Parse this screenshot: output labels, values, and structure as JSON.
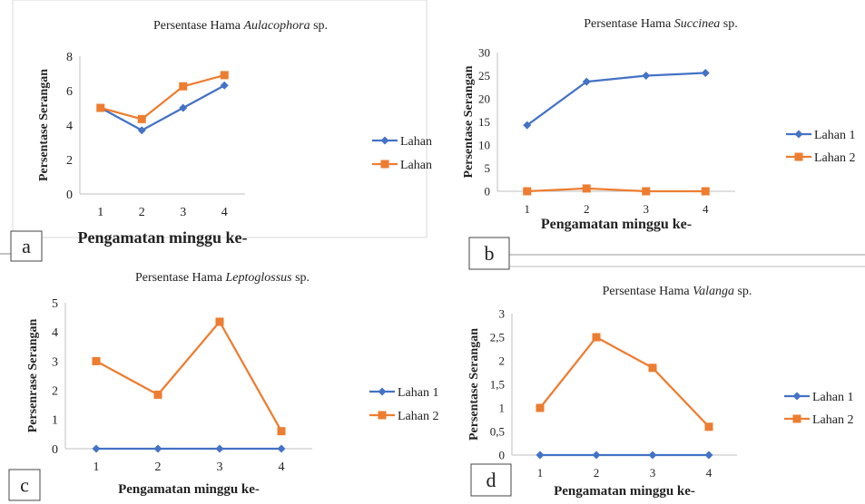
{
  "colors": {
    "series1": "#4472C4",
    "series2": "#ED7D31",
    "axis": "#BFBFBF",
    "text": "#222222"
  },
  "chart_data": [
    {
      "panel_label": "a",
      "type": "line",
      "title_prefix": "Persentase Hama ",
      "title_italic": "Aulacophora",
      "title_suffix": " sp.",
      "xlabel": "Pengamatan minggu ke-",
      "ylabel": "Persentase Serangan",
      "categories": [
        "1",
        "2",
        "3",
        "4"
      ],
      "ylim": [
        0,
        8
      ],
      "yticks": [
        "0",
        "2",
        "4",
        "6",
        "8"
      ],
      "grid": false,
      "legend_position": "right",
      "series": [
        {
          "name": "Lahan",
          "marker": "diamond",
          "values": [
            5.0,
            3.7,
            5.0,
            6.3
          ]
        },
        {
          "name": "Lahan",
          "marker": "square",
          "values": [
            5.0,
            4.35,
            6.25,
            6.9
          ]
        }
      ]
    },
    {
      "panel_label": "b",
      "type": "line",
      "title_prefix": "Persentase Hama ",
      "title_italic": "Succinea",
      "title_suffix": " sp.",
      "xlabel": "Pengamatan minggu ke-",
      "ylabel": "Persentase Serangan",
      "categories": [
        "1",
        "2",
        "3",
        "4"
      ],
      "ylim": [
        0,
        30
      ],
      "yticks": [
        "0",
        "5",
        "10",
        "15",
        "20",
        "25",
        "30"
      ],
      "grid": false,
      "legend_position": "right",
      "series": [
        {
          "name": "Lahan 1",
          "marker": "diamond",
          "values": [
            14.3,
            23.7,
            25.0,
            25.6
          ]
        },
        {
          "name": "Lahan 2",
          "marker": "square",
          "values": [
            0.0,
            0.6,
            0.0,
            0.0
          ]
        }
      ]
    },
    {
      "panel_label": "c",
      "type": "line",
      "title_prefix": "Persentase Hama ",
      "title_italic": "Leptoglossus",
      "title_suffix": " sp.",
      "xlabel": "Pengamatan minggu ke-",
      "ylabel": "Persenrase Serangan",
      "categories": [
        "1",
        "2",
        "3",
        "4"
      ],
      "ylim": [
        0,
        5
      ],
      "yticks": [
        "0",
        "1",
        "2",
        "3",
        "4",
        "5"
      ],
      "grid": false,
      "legend_position": "right",
      "series": [
        {
          "name": "Lahan 1",
          "marker": "diamond",
          "values": [
            0,
            0,
            0,
            0
          ]
        },
        {
          "name": "Lahan 2",
          "marker": "square",
          "values": [
            3.0,
            1.85,
            4.35,
            0.6
          ]
        }
      ]
    },
    {
      "panel_label": "d",
      "type": "line",
      "title_prefix": "Persentase Hama ",
      "title_italic": "Valanga",
      "title_suffix": " sp.",
      "xlabel": "Pengamatan minggu ke-",
      "ylabel": "Persentase Serangan",
      "categories": [
        "1",
        "2",
        "3",
        "4"
      ],
      "ylim": [
        0,
        3
      ],
      "yticks": [
        "0",
        "0,5",
        "1",
        "1,5",
        "2",
        "2,5",
        "3"
      ],
      "grid": false,
      "legend_position": "right",
      "series": [
        {
          "name": "Lahan 1",
          "marker": "diamond",
          "values": [
            0,
            0,
            0,
            0
          ]
        },
        {
          "name": "Lahan 2",
          "marker": "square",
          "values": [
            1.0,
            2.5,
            1.85,
            0.6
          ]
        }
      ]
    }
  ]
}
